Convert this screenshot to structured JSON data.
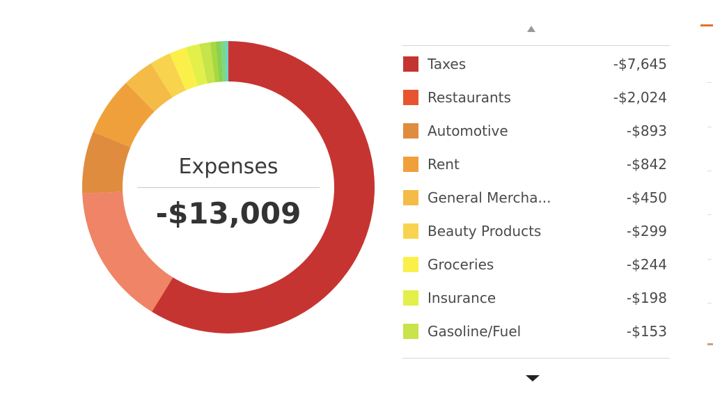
{
  "center": {
    "title": "Expenses",
    "total": "-$13,009"
  },
  "legend": [
    {
      "name": "Taxes",
      "value": "-$7,645",
      "color": "#c63431"
    },
    {
      "name": "Restaurants",
      "value": "-$2,024",
      "color": "#e8542f"
    },
    {
      "name": "Automotive",
      "value": "-$893",
      "color": "#e08c3e"
    },
    {
      "name": "Rent",
      "value": "-$842",
      "color": "#f0a03a"
    },
    {
      "name": "General Mercha...",
      "value": "-$450",
      "color": "#f5bb47"
    },
    {
      "name": "Beauty Products",
      "value": "-$299",
      "color": "#f8d44e"
    },
    {
      "name": "Groceries",
      "value": "-$244",
      "color": "#fbf04a"
    },
    {
      "name": "Insurance",
      "value": "-$198",
      "color": "#e3f04a"
    },
    {
      "name": "Gasoline/Fuel",
      "value": "-$153",
      "color": "#c7e44a"
    }
  ],
  "chart_data": {
    "type": "pie",
    "title": "Expenses",
    "total": -13009,
    "categories": [
      "Taxes",
      "Restaurants",
      "Automotive",
      "Rent",
      "General Mercha...",
      "Beauty Products",
      "Groceries",
      "Insurance",
      "Gasoline/Fuel"
    ],
    "values": [
      7645,
      2024,
      893,
      842,
      450,
      299,
      244,
      198,
      153
    ],
    "donut": true,
    "legend": "right"
  }
}
